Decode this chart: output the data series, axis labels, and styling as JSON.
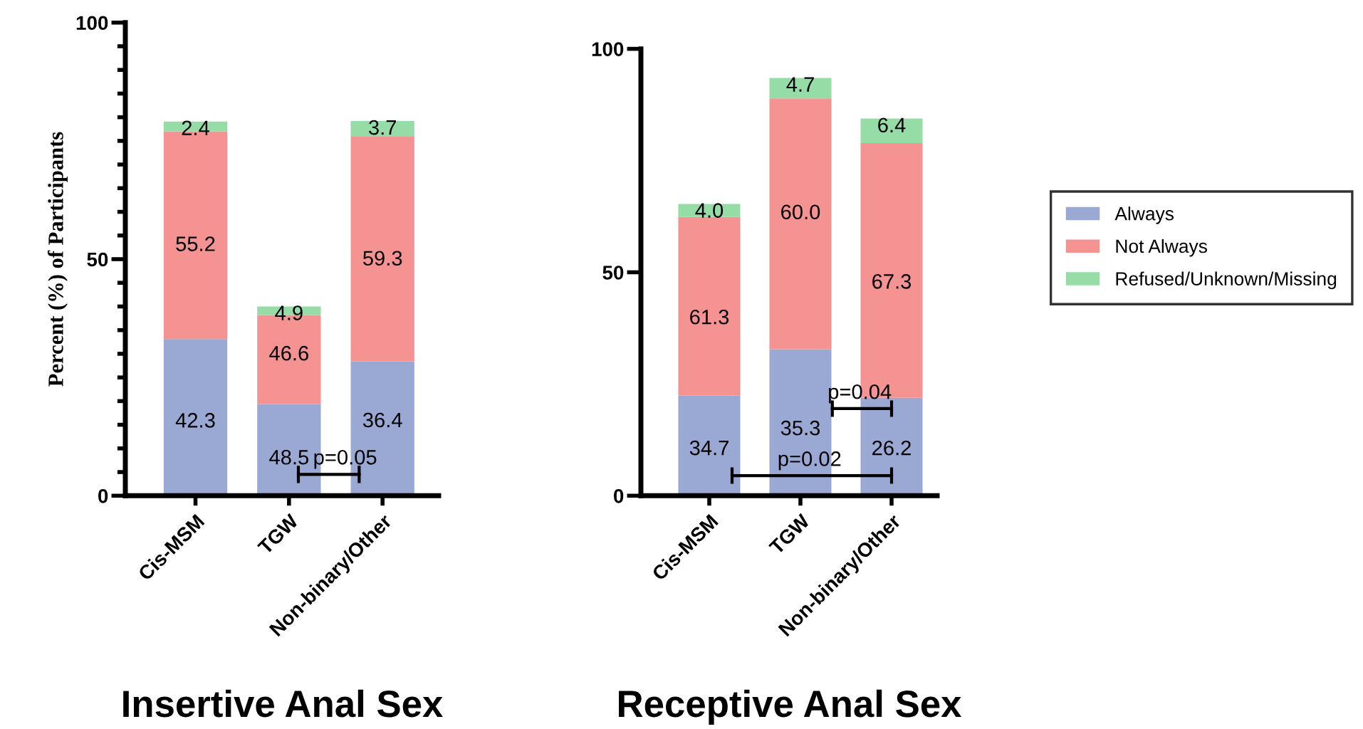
{
  "chart_data": [
    {
      "type": "bar",
      "title": "Insertive Anal Sex",
      "ylabel": "Percent (%) of Participants",
      "stacked": true,
      "legend": "right",
      "categories": [
        "Cis-MSM",
        "TGW",
        "Non-binary/Other"
      ],
      "series": [
        {
          "name": "Always",
          "color": "#9aa8d4",
          "values": [
            33.1,
            19.4,
            28.4
          ]
        },
        {
          "name": "Not Always",
          "color": "#f59292",
          "values": [
            43.9,
            18.8,
            47.6
          ]
        },
        {
          "name": "Refused/Unknown/Missing",
          "color": "#96dca6",
          "values": [
            2.1,
            1.8,
            3.2
          ]
        }
      ],
      "ylim": [
        0,
        100
      ],
      "yticks": [
        0,
        {
          "value": 5,
          "label": null
        },
        {
          "value": 10,
          "label": null
        },
        {
          "value": 15,
          "label": null
        },
        {
          "value": 20,
          "label": null
        },
        {
          "value": 25,
          "label": null
        },
        {
          "value": 30,
          "label": null
        },
        {
          "value": 35,
          "label": null
        },
        {
          "value": 40,
          "label": null
        },
        {
          "value": 45,
          "label": null
        },
        50,
        {
          "value": 55,
          "label": null
        },
        {
          "value": 60,
          "label": null
        },
        {
          "value": 65,
          "label": null
        },
        {
          "value": 70,
          "label": null
        },
        {
          "value": 75,
          "label": null
        },
        {
          "value": 80,
          "label": null
        },
        {
          "value": 85,
          "label": null
        },
        {
          "value": 90,
          "label": null
        },
        {
          "value": 95,
          "label": null
        },
        100
      ],
      "annotations": [
        "42.3",
        "48.5",
        "36.4",
        "55.2",
        "46.6",
        "59.3",
        "2.4",
        "4.9",
        "3.7",
        "p=0.05"
      ]
    },
    {
      "type": "bar",
      "title": "Receptive Anal Sex",
      "stacked": true,
      "categories": [
        "Cis-MSM",
        "TGW",
        "Non-binary/Other"
      ],
      "series": [
        {
          "name": "Always",
          "color": "#9aa8d4",
          "values": [
            22.4,
            32.8,
            21.9
          ]
        },
        {
          "name": "Not Always",
          "color": "#f59292",
          "values": [
            40.0,
            56.1,
            57.0
          ]
        },
        {
          "name": "Refused/Unknown/Missing",
          "color": "#96dca6",
          "values": [
            2.9,
            4.6,
            5.5
          ]
        }
      ],
      "ylim": [
        0,
        100
      ],
      "yticks": [
        0,
        50,
        100
      ],
      "annotations": [
        "34.7",
        "35.3",
        "26.2",
        "61.3",
        "60.0",
        "67.3",
        "4.0",
        "4.7",
        "6.4",
        "p=0.04",
        "p=0.02"
      ]
    }
  ]
}
